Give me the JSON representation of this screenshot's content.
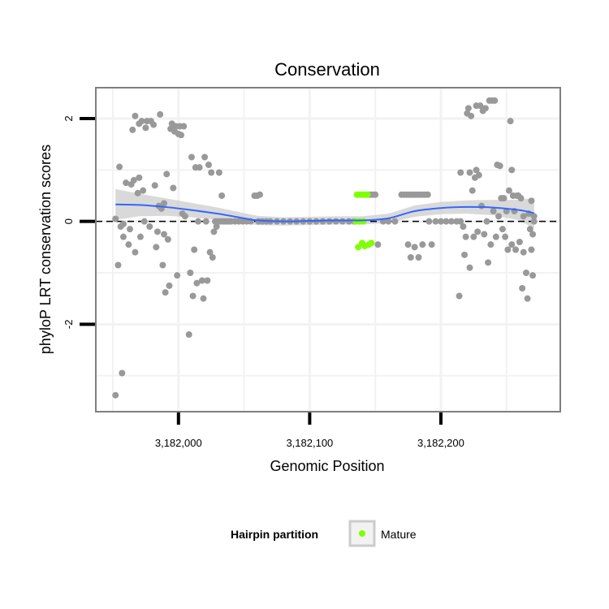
{
  "chart_data": {
    "type": "scatter",
    "title": "Conservation",
    "xlabel": "Genomic Position",
    "ylabel": "phyloP LRT conservation scores",
    "xlim": [
      3181937,
      3182291
    ],
    "ylim": [
      -3.7,
      2.6
    ],
    "x_ticks": [
      3182000,
      3182100,
      3182200
    ],
    "x_tick_labels": [
      "3,182,000",
      "3,182,100",
      "3,182,200"
    ],
    "y_ticks": [
      -2,
      0,
      2
    ],
    "y_tick_labels": [
      "-2",
      "0",
      "2"
    ],
    "grid": true,
    "reference_line": {
      "y": 0,
      "style": "dashed"
    },
    "colors": {
      "other_points": "#999999",
      "mature_points": "#7fff00",
      "smooth_line": "#3366ff",
      "ribbon": "#cccccc",
      "panel_border": "#7f7f7f",
      "grid": "#f2f2f2"
    },
    "legend": {
      "title": "Hairpin partition",
      "position": "bottom",
      "entries": [
        {
          "label": "Mature",
          "color": "#7fff00"
        }
      ]
    },
    "series": [
      {
        "name": "",
        "color": "#999999",
        "points": [
          [
            3181952,
            -3.38
          ],
          [
            3181957,
            -2.95
          ],
          [
            3181952,
            0.05
          ],
          [
            3181954,
            -0.85
          ],
          [
            3181955,
            1.06
          ],
          [
            3181956,
            -0.1
          ],
          [
            3181958,
            -0.05
          ],
          [
            3181958,
            -0.3
          ],
          [
            3181960,
            0.75
          ],
          [
            3181962,
            -0.45
          ],
          [
            3181963,
            -0.15
          ],
          [
            3181964,
            0.72
          ],
          [
            3181965,
            1.78
          ],
          [
            3181966,
            0.8
          ],
          [
            3181967,
            2.05
          ],
          [
            3181967,
            -0.6
          ],
          [
            3181969,
            0.55
          ],
          [
            3181970,
            0.85
          ],
          [
            3181970,
            1.9
          ],
          [
            3181971,
            -0.3
          ],
          [
            3181972,
            1.95
          ],
          [
            3181973,
            0.6
          ],
          [
            3181974,
            0.0
          ],
          [
            3181975,
            1.82
          ],
          [
            3181976,
            1.95
          ],
          [
            3181978,
            -0.1
          ],
          [
            3181979,
            1.95
          ],
          [
            3181981,
            1.88
          ],
          [
            3181982,
            0.7
          ],
          [
            3181983,
            -0.5
          ],
          [
            3181984,
            -0.2
          ],
          [
            3181985,
            0.3
          ],
          [
            3181986,
            2.08
          ],
          [
            3181987,
            0.25
          ],
          [
            3181988,
            -0.85
          ],
          [
            3181989,
            -0.25
          ],
          [
            3181989,
            0.35
          ],
          [
            3181990,
            -1.38
          ],
          [
            3181991,
            0.92
          ],
          [
            3181992,
            -0.35
          ],
          [
            3181993,
            -1.25
          ],
          [
            3181994,
            1.8
          ],
          [
            3181995,
            1.9
          ],
          [
            3181996,
            0.65
          ],
          [
            3181997,
            1.75
          ],
          [
            3181998,
            1.85
          ],
          [
            3181999,
            -1.05
          ],
          [
            3182000,
            1.7
          ],
          [
            3182001,
            1.85
          ],
          [
            3182002,
            1.68
          ],
          [
            3182003,
            0.15
          ],
          [
            3182004,
            1.85
          ],
          [
            3182005,
            0.1
          ],
          [
            3182008,
            -2.2
          ],
          [
            3182009,
            -1.0
          ],
          [
            3182010,
            1.25
          ],
          [
            3182011,
            -1.45
          ],
          [
            3182012,
            -0.55
          ],
          [
            3182013,
            1.05
          ],
          [
            3182014,
            -1.2
          ],
          [
            3182015,
            0.0
          ],
          [
            3182016,
            1.05
          ],
          [
            3182018,
            -1.15
          ],
          [
            3182019,
            -1.5
          ],
          [
            3182020,
            1.25
          ],
          [
            3182021,
            0.0
          ],
          [
            3182022,
            -1.15
          ],
          [
            3182023,
            1.1
          ],
          [
            3182024,
            -0.6
          ],
          [
            3182025,
            0.95
          ],
          [
            3182026,
            -0.7
          ],
          [
            3182027,
            -0.2
          ],
          [
            3182028,
            0.0
          ],
          [
            3182029,
            -0.1
          ],
          [
            3182030,
            0.0
          ],
          [
            3182031,
            0.95
          ],
          [
            3182032,
            0.0
          ],
          [
            3182033,
            0.5
          ],
          [
            3182034,
            0.0
          ],
          [
            3182036,
            0.0
          ],
          [
            3182038,
            0.0
          ],
          [
            3182040,
            0.0
          ],
          [
            3182043,
            0.0
          ],
          [
            3182046,
            0.0
          ],
          [
            3182049,
            0.0
          ],
          [
            3182052,
            0.0
          ],
          [
            3182055,
            0.0
          ],
          [
            3182058,
            0.5
          ],
          [
            3182060,
            0.5
          ],
          [
            3182061,
            0.0
          ],
          [
            3182062,
            0.52
          ],
          [
            3182064,
            0.0
          ],
          [
            3182067,
            0.0
          ],
          [
            3182070,
            0.0
          ],
          [
            3182075,
            0.0
          ],
          [
            3182080,
            0.0
          ],
          [
            3182085,
            0.0
          ],
          [
            3182090,
            0.0
          ],
          [
            3182095,
            0.0
          ],
          [
            3182100,
            0.0
          ],
          [
            3182105,
            0.0
          ],
          [
            3182110,
            0.0
          ],
          [
            3182115,
            0.0
          ],
          [
            3182120,
            0.0
          ],
          [
            3182125,
            0.0
          ],
          [
            3182130,
            0.0
          ],
          [
            3182134,
            0.0
          ],
          [
            3182146,
            0.52
          ],
          [
            3182148,
            0.52
          ],
          [
            3182150,
            0.52
          ],
          [
            3182152,
            -0.45
          ],
          [
            3182156,
            0.0
          ],
          [
            3182160,
            0.0
          ],
          [
            3182165,
            0.0
          ],
          [
            3182170,
            0.52
          ],
          [
            3182172,
            0.52
          ],
          [
            3182174,
            0.52
          ],
          [
            3182176,
            0.52
          ],
          [
            3182178,
            0.52
          ],
          [
            3182180,
            0.52
          ],
          [
            3182182,
            0.52
          ],
          [
            3182184,
            0.52
          ],
          [
            3182186,
            0.52
          ],
          [
            3182188,
            0.52
          ],
          [
            3182175,
            -0.45
          ],
          [
            3182177,
            -0.7
          ],
          [
            3182180,
            -0.5
          ],
          [
            3182183,
            -0.7
          ],
          [
            3182186,
            -0.45
          ],
          [
            3182190,
            0.52
          ],
          [
            3182191,
            0.0
          ],
          [
            3182193,
            -0.45
          ],
          [
            3182196,
            0.0
          ],
          [
            3182200,
            0.0
          ],
          [
            3182204,
            0.0
          ],
          [
            3182208,
            0.0
          ],
          [
            3182212,
            0.0
          ],
          [
            3182214,
            -1.45
          ],
          [
            3182215,
            0.0
          ],
          [
            3182215,
            0.95
          ],
          [
            3182217,
            -0.1
          ],
          [
            3182218,
            -0.65
          ],
          [
            3182219,
            -0.3
          ],
          [
            3182220,
            2.1
          ],
          [
            3182221,
            2.2
          ],
          [
            3182222,
            -0.9
          ],
          [
            3182222,
            0.95
          ],
          [
            3182223,
            2.05
          ],
          [
            3182224,
            0.6
          ],
          [
            3182225,
            -0.3
          ],
          [
            3182226,
            0.85
          ],
          [
            3182227,
            2.25
          ],
          [
            3182227,
            1.0
          ],
          [
            3182228,
            -0.2
          ],
          [
            3182229,
            0.9
          ],
          [
            3182230,
            2.25
          ],
          [
            3182231,
            0.3
          ],
          [
            3182232,
            2.15
          ],
          [
            3182233,
            -0.25
          ],
          [
            3182234,
            2.2
          ],
          [
            3182235,
            0.0
          ],
          [
            3182236,
            -0.8
          ],
          [
            3182237,
            2.35
          ],
          [
            3182238,
            -0.45
          ],
          [
            3182239,
            2.35
          ],
          [
            3182240,
            0.2
          ],
          [
            3182241,
            2.35
          ],
          [
            3182242,
            -0.3
          ],
          [
            3182243,
            1.1
          ],
          [
            3182244,
            0.1
          ],
          [
            3182245,
            1.08
          ],
          [
            3182246,
            0.45
          ],
          [
            3182247,
            -0.15
          ],
          [
            3182248,
            0.45
          ],
          [
            3182249,
            -0.3
          ],
          [
            3182250,
            0.2
          ],
          [
            3182251,
            -0.55
          ],
          [
            3182252,
            0.6
          ],
          [
            3182253,
            1.95
          ],
          [
            3182254,
            1.0
          ],
          [
            3182254,
            -0.45
          ],
          [
            3182255,
            0.5
          ],
          [
            3182256,
            0.2
          ],
          [
            3182257,
            -0.55
          ],
          [
            3182258,
            0.5
          ],
          [
            3182259,
            0.5
          ],
          [
            3182260,
            -0.4
          ],
          [
            3182261,
            0.45
          ],
          [
            3182262,
            -1.3
          ],
          [
            3182263,
            0.1
          ],
          [
            3182263,
            -0.6
          ],
          [
            3182265,
            -1.0
          ],
          [
            3182266,
            -1.5
          ],
          [
            3182267,
            0.15
          ],
          [
            3182268,
            -0.15
          ],
          [
            3182269,
            -0.55
          ],
          [
            3182270,
            -1.05
          ],
          [
            3182271,
            0.1
          ],
          [
            3182269,
            0.4
          ],
          [
            3182271,
            0.0
          ],
          [
            3182270,
            -0.25
          ]
        ]
      },
      {
        "name": "Mature",
        "color": "#7fff00",
        "points": [
          [
            3182136,
            0.52
          ],
          [
            3182138,
            0.52
          ],
          [
            3182140,
            0.52
          ],
          [
            3182142,
            0.52
          ],
          [
            3182144,
            0.52
          ],
          [
            3182137,
            -0.5
          ],
          [
            3182140,
            -0.42
          ],
          [
            3182142,
            -0.48
          ],
          [
            3182145,
            -0.45
          ],
          [
            3182147,
            -0.42
          ],
          [
            3182135,
            0.0
          ],
          [
            3182138,
            0.0
          ],
          [
            3182141,
            0.0
          ]
        ]
      }
    ],
    "smooth_fit": {
      "x": [
        3181952,
        3181970,
        3181990,
        3182010,
        3182030,
        3182050,
        3182060,
        3182080,
        3182100,
        3182120,
        3182140,
        3182160,
        3182180,
        3182200,
        3182220,
        3182240,
        3182260,
        3182271
      ],
      "y": [
        0.33,
        0.32,
        0.28,
        0.22,
        0.15,
        0.06,
        0.02,
        0.0,
        0.01,
        0.02,
        0.02,
        0.06,
        0.2,
        0.26,
        0.28,
        0.27,
        0.22,
        0.16
      ],
      "ribbon_halfwidth": [
        0.3,
        0.22,
        0.17,
        0.14,
        0.12,
        0.1,
        0.09,
        0.08,
        0.08,
        0.08,
        0.08,
        0.09,
        0.11,
        0.12,
        0.13,
        0.15,
        0.2,
        0.3
      ]
    }
  }
}
